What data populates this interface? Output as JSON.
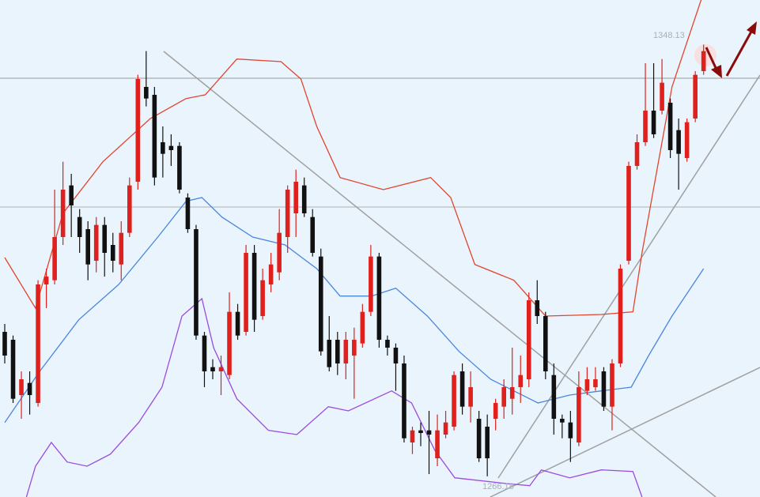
{
  "chart_data": {
    "type": "candlestick",
    "up_color": "#e0201c",
    "down_color": "#111111",
    "ylim": [
      1262.25,
      1356.6
    ],
    "open": [
      1293.6,
      1292.1,
      1281.6,
      1283.9,
      1280.1,
      1302.6,
      1303.4,
      1311.6,
      1321.4,
      1315.4,
      1313.1,
      1307.1,
      1313.9,
      1310.1,
      1306.4,
      1312.4,
      1322.1,
      1340.1,
      1338.6,
      1329.6,
      1328.9,
      1328.9,
      1319.1,
      1313.1,
      1292.9,
      1286.9,
      1286.1,
      1285.4,
      1297.4,
      1293.6,
      1308.6,
      1296.6,
      1302.6,
      1304.9,
      1311.6,
      1316.1,
      1321.4,
      1315.4,
      1307.9,
      1292.1,
      1292.1,
      1287.6,
      1289.1,
      1291.4,
      1297.4,
      1307.9,
      1292.1,
      1290.6,
      1287.6,
      1272.6,
      1274.9,
      1274.9,
      1269.6,
      1274.1,
      1275.6,
      1286.1,
      1279.4,
      1277.1,
      1275.6,
      1277.1,
      1279.4,
      1280.9,
      1283.1,
      1284.6,
      1299.6,
      1296.6,
      1285.4,
      1277.1,
      1276.4,
      1272.6,
      1282.4,
      1283.1,
      1286.1,
      1279.4,
      1287.6,
      1307.1,
      1325.1,
      1329.6,
      1335.6,
      1335.6,
      1337.1,
      1331.9,
      1326.6,
      1334.1,
      1343.1
    ],
    "high": [
      1295.1,
      1292.9,
      1286.1,
      1286.1,
      1303.4,
      1305.6,
      1320.6,
      1325.9,
      1323.6,
      1316.9,
      1314.6,
      1315.4,
      1315.4,
      1312.4,
      1314.6,
      1322.9,
      1342.4,
      1346.9,
      1340.1,
      1332.6,
      1331.1,
      1329.6,
      1319.9,
      1313.9,
      1293.6,
      1288.4,
      1289.1,
      1301.1,
      1298.9,
      1310.1,
      1310.1,
      1305.6,
      1308.6,
      1316.9,
      1321.4,
      1324.4,
      1322.9,
      1316.9,
      1309.4,
      1296.6,
      1293.6,
      1293.6,
      1294.4,
      1298.9,
      1310.1,
      1308.6,
      1292.9,
      1291.4,
      1289.1,
      1275.6,
      1276.4,
      1278.6,
      1277.9,
      1278.6,
      1286.1,
      1287.6,
      1286.1,
      1278.6,
      1277.9,
      1280.9,
      1284.6,
      1290.6,
      1289.1,
      1301.1,
      1303.4,
      1297.4,
      1287.6,
      1277.9,
      1278.6,
      1286.1,
      1286.9,
      1286.9,
      1286.9,
      1288.4,
      1306.4,
      1325.9,
      1331.1,
      1344.6,
      1344.6,
      1345.4,
      1337.9,
      1334.1,
      1334.1,
      1343.1,
      1348.13
    ],
    "low": [
      1287.6,
      1280.1,
      1277.1,
      1277.9,
      1279.4,
      1298.1,
      1302.6,
      1310.1,
      1311.6,
      1308.6,
      1303.4,
      1304.9,
      1304.1,
      1304.9,
      1303.4,
      1311.6,
      1320.6,
      1336.4,
      1321.4,
      1322.9,
      1325.1,
      1319.9,
      1312.4,
      1292.1,
      1283.1,
      1284.6,
      1281.6,
      1284.6,
      1292.1,
      1292.9,
      1293.6,
      1295.9,
      1301.1,
      1303.4,
      1308.6,
      1311.6,
      1315.4,
      1307.9,
      1289.1,
      1286.1,
      1285.4,
      1284.6,
      1280.9,
      1290.6,
      1296.6,
      1290.6,
      1289.1,
      1282.4,
      1272.6,
      1270.4,
      1271.9,
      1266.6,
      1268.1,
      1273.4,
      1274.9,
      1277.9,
      1276.4,
      1268.9,
      1266.18,
      1274.9,
      1277.1,
      1277.9,
      1280.1,
      1283.1,
      1295.1,
      1284.6,
      1274.1,
      1273.4,
      1268.9,
      1271.9,
      1281.6,
      1282.4,
      1278.6,
      1274.9,
      1286.9,
      1306.4,
      1324.4,
      1328.9,
      1330.4,
      1334.9,
      1326.6,
      1320.6,
      1325.9,
      1333.4,
      1342.4
    ],
    "close": [
      1289.1,
      1280.9,
      1284.6,
      1281.6,
      1302.6,
      1304.1,
      1311.6,
      1320.6,
      1317.6,
      1311.6,
      1306.4,
      1313.9,
      1308.6,
      1307.1,
      1312.4,
      1321.4,
      1341.6,
      1337.9,
      1322.9,
      1327.4,
      1328.1,
      1320.6,
      1313.1,
      1292.9,
      1286.1,
      1286.1,
      1286.9,
      1297.4,
      1292.9,
      1308.6,
      1295.9,
      1303.4,
      1306.4,
      1312.4,
      1320.6,
      1322.1,
      1316.1,
      1308.6,
      1289.9,
      1286.9,
      1287.6,
      1292.1,
      1292.1,
      1297.4,
      1307.9,
      1292.1,
      1290.6,
      1287.6,
      1273.4,
      1274.9,
      1274.4,
      1274.1,
      1274.9,
      1276.4,
      1285.4,
      1279.4,
      1283.1,
      1269.6,
      1269.6,
      1280.1,
      1283.1,
      1283.1,
      1285.4,
      1299.6,
      1296.6,
      1286.1,
      1277.1,
      1276.4,
      1273.4,
      1283.1,
      1284.6,
      1284.6,
      1279.4,
      1287.6,
      1305.6,
      1325.1,
      1329.6,
      1335.6,
      1331.1,
      1340.9,
      1328.1,
      1327.4,
      1333.4,
      1342.4,
      1346.9
    ],
    "overlays": [
      {
        "color": "#e0452e",
        "x": [
          0,
          3.7,
          7.0,
          11.8,
          17.5,
          21.8,
          24.1,
          27.9,
          33.2,
          35.6,
          37.5,
          40.3,
          45.5,
          51.2,
          53.6,
          56.5,
          61.2,
          65.0,
          71.7,
          75.5,
          76.6,
          80.2,
          83.7
        ],
        "values": [
          1307.7,
          1298.1,
          1316.1,
          1325.9,
          1334.1,
          1337.9,
          1338.6,
          1345.4,
          1344.9,
          1341.6,
          1332.6,
          1322.9,
          1320.6,
          1322.9,
          1319.1,
          1306.4,
          1303.4,
          1296.6,
          1296.9,
          1297.4,
          1308.6,
          1340.1,
          1356.6
        ]
      },
      {
        "color": "#4a86e0",
        "x": [
          0,
          4.2,
          8.9,
          13.7,
          18.4,
          21.8,
          23.7,
          26.1,
          29.8,
          33.7,
          37.5,
          40.3,
          44.1,
          47.0,
          50.8,
          54.6,
          58.4,
          64.1,
          67.9,
          71.7,
          75.3,
          77.4,
          80.2,
          84.0
        ],
        "values": [
          1276.4,
          1286.1,
          1295.9,
          1302.6,
          1311.6,
          1318.4,
          1319.1,
          1315.4,
          1311.6,
          1310.1,
          1305.6,
          1300.4,
          1300.4,
          1301.9,
          1296.6,
          1289.9,
          1284.6,
          1280.1,
          1281.6,
          1282.4,
          1283.1,
          1289.1,
          1296.6,
          1305.6
        ]
      },
      {
        "color": "#9b4ae0",
        "x": [
          2.6,
          3.7,
          5.6,
          7.5,
          9.9,
          12.7,
          16.1,
          18.9,
          21.3,
          23.7,
          25.1,
          27.9,
          31.7,
          35.1,
          38.9,
          41.3,
          46.5,
          48.9,
          51.7,
          54.1,
          60.3,
          63.1,
          64.5,
          67.9,
          71.7,
          75.5,
          76.6
        ],
        "values": [
          1262.25,
          1268.1,
          1272.6,
          1268.9,
          1268.1,
          1270.4,
          1276.4,
          1283.1,
          1296.6,
          1299.9,
          1290.6,
          1280.9,
          1274.9,
          1274.1,
          1279.4,
          1278.6,
          1282.4,
          1280.1,
          1271.1,
          1265.9,
          1264.8,
          1264.4,
          1267.4,
          1265.9,
          1267.4,
          1267.1,
          1262.25
        ]
      }
    ],
    "annotations": [
      "1348.13",
      "1266.18"
    ]
  }
}
